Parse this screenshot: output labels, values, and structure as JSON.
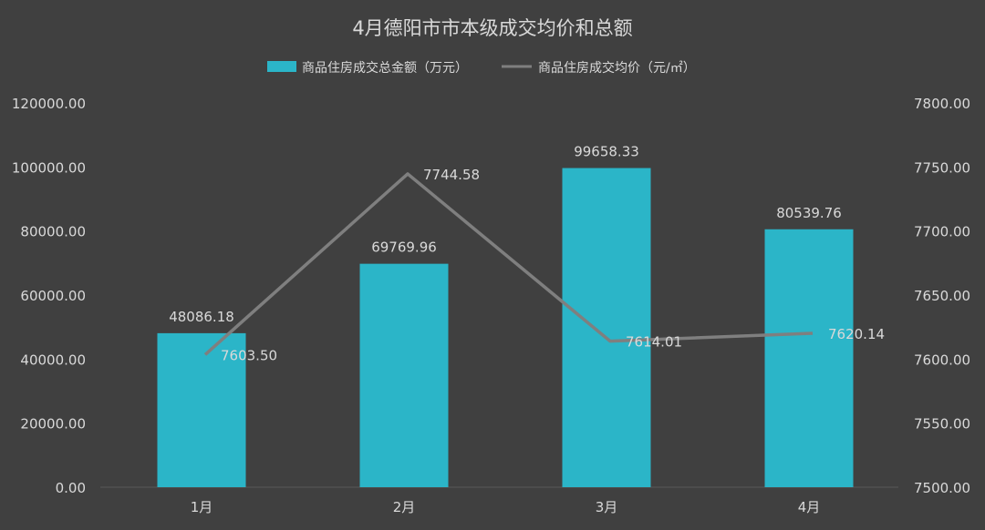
{
  "chart_data": {
    "type": "bar",
    "title": "4月德阳市市本级成交均价和总额",
    "categories": [
      "1月",
      "2月",
      "3月",
      "4月"
    ],
    "series": [
      {
        "name": "商品住房成交总金额（万元）",
        "type": "bar",
        "axis": "left",
        "color": "#2BB5C8",
        "values": [
          48086.18,
          69769.96,
          99658.33,
          80539.76
        ],
        "labels": [
          "48086.18",
          "69769.96",
          "99658.33",
          "80539.76"
        ]
      },
      {
        "name": "商品住房成交均价（元/㎡）",
        "type": "line",
        "axis": "right",
        "color": "#7F7F7F",
        "values": [
          7603.5,
          7744.58,
          7614.01,
          7620.14
        ],
        "labels": [
          "7603.50",
          "7744.58",
          "7614.01",
          "7620.14"
        ]
      }
    ],
    "y_left": {
      "ylim": [
        0,
        120000
      ],
      "ticks": [
        "0.00",
        "20000.00",
        "40000.00",
        "60000.00",
        "80000.00",
        "100000.00",
        "120000.00"
      ]
    },
    "y_right": {
      "ylim": [
        7500,
        7800
      ],
      "ticks": [
        "7500.00",
        "7550.00",
        "7600.00",
        "7650.00",
        "7700.00",
        "7750.00",
        "7800.00"
      ]
    },
    "grid": false,
    "legend_position": "top-center"
  },
  "colors": {
    "background": "#404040",
    "text": "#D9D9D9",
    "axis_line": "#595959"
  }
}
